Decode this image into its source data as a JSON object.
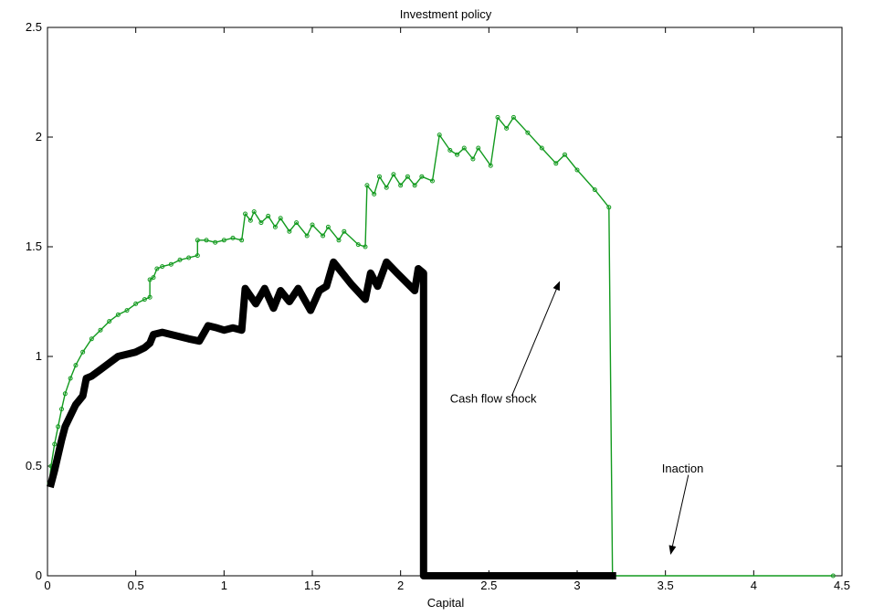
{
  "chart_data": {
    "type": "line",
    "title": "Investment policy",
    "xlabel": "Capital",
    "ylabel": "",
    "xlim": [
      0,
      4.5
    ],
    "ylim": [
      0,
      2.5
    ],
    "xticks": [
      0,
      0.5,
      1,
      1.5,
      2,
      2.5,
      3,
      3.5,
      4,
      4.5
    ],
    "xtick_labels": [
      "0",
      "0.5",
      "1",
      "1.5",
      "2",
      "2.5",
      "3",
      "3.5",
      "4",
      "4.5"
    ],
    "yticks": [
      0,
      0.5,
      1,
      1.5,
      2,
      2.5
    ],
    "ytick_labels": [
      "0",
      "0.5",
      "1",
      "1.5",
      "2",
      "2.5"
    ],
    "grid": false,
    "series": [
      {
        "color": "#129a1e",
        "style": "thin line with small markers",
        "points": [
          [
            0.01,
            0.42
          ],
          [
            0.02,
            0.5
          ],
          [
            0.04,
            0.6
          ],
          [
            0.06,
            0.68
          ],
          [
            0.08,
            0.76
          ],
          [
            0.1,
            0.83
          ],
          [
            0.13,
            0.9
          ],
          [
            0.16,
            0.96
          ],
          [
            0.2,
            1.02
          ],
          [
            0.25,
            1.08
          ],
          [
            0.3,
            1.12
          ],
          [
            0.35,
            1.16
          ],
          [
            0.4,
            1.19
          ],
          [
            0.45,
            1.21
          ],
          [
            0.5,
            1.24
          ],
          [
            0.55,
            1.26
          ],
          [
            0.58,
            1.27
          ],
          [
            0.58,
            1.35
          ],
          [
            0.6,
            1.36
          ],
          [
            0.62,
            1.4
          ],
          [
            0.65,
            1.41
          ],
          [
            0.7,
            1.42
          ],
          [
            0.75,
            1.44
          ],
          [
            0.8,
            1.45
          ],
          [
            0.85,
            1.46
          ],
          [
            0.85,
            1.53
          ],
          [
            0.9,
            1.53
          ],
          [
            0.95,
            1.52
          ],
          [
            1.0,
            1.53
          ],
          [
            1.05,
            1.54
          ],
          [
            1.1,
            1.53
          ],
          [
            1.12,
            1.65
          ],
          [
            1.15,
            1.62
          ],
          [
            1.17,
            1.66
          ],
          [
            1.21,
            1.61
          ],
          [
            1.25,
            1.64
          ],
          [
            1.29,
            1.59
          ],
          [
            1.32,
            1.63
          ],
          [
            1.37,
            1.57
          ],
          [
            1.41,
            1.61
          ],
          [
            1.47,
            1.55
          ],
          [
            1.5,
            1.6
          ],
          [
            1.56,
            1.55
          ],
          [
            1.59,
            1.59
          ],
          [
            1.65,
            1.53
          ],
          [
            1.68,
            1.57
          ],
          [
            1.76,
            1.51
          ],
          [
            1.8,
            1.5
          ],
          [
            1.81,
            1.78
          ],
          [
            1.85,
            1.74
          ],
          [
            1.88,
            1.82
          ],
          [
            1.92,
            1.77
          ],
          [
            1.96,
            1.83
          ],
          [
            2.0,
            1.78
          ],
          [
            2.04,
            1.82
          ],
          [
            2.08,
            1.78
          ],
          [
            2.12,
            1.82
          ],
          [
            2.18,
            1.8
          ],
          [
            2.22,
            2.01
          ],
          [
            2.28,
            1.94
          ],
          [
            2.32,
            1.92
          ],
          [
            2.36,
            1.95
          ],
          [
            2.41,
            1.9
          ],
          [
            2.44,
            1.95
          ],
          [
            2.51,
            1.87
          ],
          [
            2.55,
            2.09
          ],
          [
            2.6,
            2.04
          ],
          [
            2.64,
            2.09
          ],
          [
            2.72,
            2.02
          ],
          [
            2.8,
            1.95
          ],
          [
            2.88,
            1.88
          ],
          [
            2.93,
            1.92
          ],
          [
            3.0,
            1.85
          ],
          [
            3.1,
            1.76
          ],
          [
            3.18,
            1.68
          ],
          [
            3.2,
            0.0
          ],
          [
            4.45,
            0.0
          ]
        ]
      },
      {
        "color": "#000000",
        "style": "thick line",
        "points": [
          [
            0.02,
            0.42
          ],
          [
            0.04,
            0.48
          ],
          [
            0.06,
            0.55
          ],
          [
            0.08,
            0.62
          ],
          [
            0.1,
            0.68
          ],
          [
            0.13,
            0.73
          ],
          [
            0.16,
            0.78
          ],
          [
            0.2,
            0.82
          ],
          [
            0.22,
            0.9
          ],
          [
            0.25,
            0.91
          ],
          [
            0.3,
            0.94
          ],
          [
            0.35,
            0.97
          ],
          [
            0.4,
            1.0
          ],
          [
            0.45,
            1.01
          ],
          [
            0.5,
            1.02
          ],
          [
            0.55,
            1.04
          ],
          [
            0.58,
            1.06
          ],
          [
            0.6,
            1.1
          ],
          [
            0.65,
            1.11
          ],
          [
            0.7,
            1.1
          ],
          [
            0.75,
            1.09
          ],
          [
            0.8,
            1.08
          ],
          [
            0.86,
            1.07
          ],
          [
            0.91,
            1.14
          ],
          [
            0.96,
            1.13
          ],
          [
            1.0,
            1.12
          ],
          [
            1.05,
            1.13
          ],
          [
            1.1,
            1.12
          ],
          [
            1.12,
            1.31
          ],
          [
            1.18,
            1.24
          ],
          [
            1.23,
            1.31
          ],
          [
            1.28,
            1.22
          ],
          [
            1.32,
            1.3
          ],
          [
            1.37,
            1.25
          ],
          [
            1.42,
            1.31
          ],
          [
            1.49,
            1.21
          ],
          [
            1.54,
            1.3
          ],
          [
            1.58,
            1.32
          ],
          [
            1.62,
            1.43
          ],
          [
            1.72,
            1.33
          ],
          [
            1.8,
            1.26
          ],
          [
            1.83,
            1.38
          ],
          [
            1.87,
            1.32
          ],
          [
            1.92,
            1.43
          ],
          [
            1.98,
            1.38
          ],
          [
            2.08,
            1.3
          ],
          [
            2.1,
            1.4
          ],
          [
            2.13,
            1.38
          ],
          [
            2.13,
            0.0
          ],
          [
            3.2,
            0.0
          ]
        ]
      }
    ],
    "annotations": [
      {
        "text": "Cash flow shock",
        "text_x": 2.28,
        "text_y": 0.79,
        "arrow_from": [
          2.63,
          0.82
        ],
        "arrow_to": [
          2.9,
          1.34
        ]
      },
      {
        "text": "Inaction",
        "text_x": 3.48,
        "text_y": 0.47,
        "arrow_from": [
          3.63,
          0.46
        ],
        "arrow_to": [
          3.53,
          0.1
        ]
      }
    ]
  }
}
